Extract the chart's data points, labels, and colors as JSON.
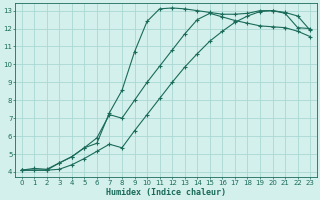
{
  "xlabel": "Humidex (Indice chaleur)",
  "bg_color": "#d4f0ec",
  "grid_color": "#aad8d2",
  "line_color": "#1a6b5a",
  "xlim": [
    -0.5,
    23.5
  ],
  "ylim": [
    3.7,
    13.4
  ],
  "xticks": [
    0,
    1,
    2,
    3,
    4,
    5,
    6,
    7,
    8,
    9,
    10,
    11,
    12,
    13,
    14,
    15,
    16,
    17,
    18,
    19,
    20,
    21,
    22,
    23
  ],
  "yticks": [
    4,
    5,
    6,
    7,
    8,
    9,
    10,
    11,
    12,
    13
  ],
  "curve1_x": [
    0,
    1,
    2,
    3,
    4,
    5,
    6,
    7,
    8,
    9,
    10,
    11,
    12,
    13,
    14,
    15,
    16,
    17,
    18,
    19,
    20,
    21,
    22,
    23
  ],
  "curve1_y": [
    4.1,
    4.2,
    4.15,
    4.5,
    4.85,
    5.35,
    5.6,
    7.3,
    8.55,
    10.7,
    12.4,
    13.1,
    13.15,
    13.1,
    13.0,
    12.9,
    12.8,
    12.8,
    12.85,
    13.0,
    13.0,
    12.9,
    12.7,
    11.9
  ],
  "curve2_x": [
    0,
    2,
    3,
    4,
    5,
    6,
    7,
    8,
    9,
    10,
    11,
    12,
    13,
    14,
    15,
    16,
    17,
    18,
    19,
    20,
    21,
    22,
    23
  ],
  "curve2_y": [
    4.1,
    4.1,
    4.5,
    4.85,
    5.35,
    5.9,
    7.2,
    7.0,
    8.0,
    9.0,
    9.9,
    10.8,
    11.7,
    12.5,
    12.85,
    12.65,
    12.45,
    12.3,
    12.15,
    12.1,
    12.05,
    11.85,
    11.55
  ],
  "curve3_x": [
    0,
    1,
    2,
    3,
    4,
    5,
    6,
    7,
    8,
    9,
    10,
    11,
    12,
    13,
    14,
    15,
    16,
    17,
    18,
    19,
    20,
    21,
    22,
    23
  ],
  "curve3_y": [
    4.1,
    4.1,
    4.1,
    4.15,
    4.4,
    4.75,
    5.15,
    5.55,
    5.35,
    6.3,
    7.2,
    8.1,
    9.0,
    9.85,
    10.6,
    11.3,
    11.85,
    12.35,
    12.7,
    12.95,
    13.0,
    12.85,
    12.05,
    12.0
  ]
}
